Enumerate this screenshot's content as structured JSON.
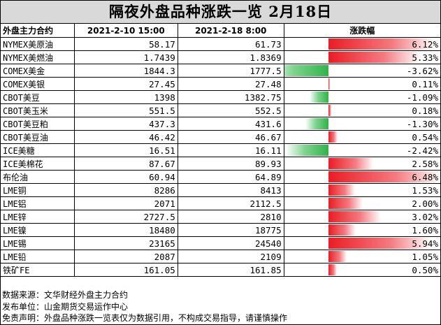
{
  "title": "隔夜外盘品种涨跌一览  2月18日",
  "columns": [
    "外盘主力合约",
    "2021-2-10 15:00",
    "2021-2-18 8:00",
    "涨跌幅"
  ],
  "colors": {
    "up": "#ea1c24",
    "down": "#31b34a",
    "title_bg": "#d9d9d9"
  },
  "rows": [
    {
      "name": "NYMEX美原油",
      "prev": "58.17",
      "curr": "61.73",
      "change": "6.12%",
      "pct": 6.12
    },
    {
      "name": "NYMEX美燃油",
      "prev": "1.7439",
      "curr": "1.8369",
      "change": "5.33%",
      "pct": 5.33
    },
    {
      "name": "COMEX美金",
      "prev": "1844.3",
      "curr": "1777.5",
      "change": "-3.62%",
      "pct": -3.62
    },
    {
      "name": "COMEX美银",
      "prev": "27.45",
      "curr": "27.48",
      "change": "0.11%",
      "pct": 0.11
    },
    {
      "name": "CBOT美豆",
      "prev": "1398",
      "curr": "1382.75",
      "change": "-1.09%",
      "pct": -1.09
    },
    {
      "name": "CBOT美玉米",
      "prev": "551.5",
      "curr": "552.5",
      "change": "0.18%",
      "pct": 0.18
    },
    {
      "name": "CBOT美豆粕",
      "prev": "437.3",
      "curr": "431.6",
      "change": "-1.30%",
      "pct": -1.3
    },
    {
      "name": "CBOT美豆油",
      "prev": "46.42",
      "curr": "46.67",
      "change": "0.54%",
      "pct": 0.54
    },
    {
      "name": "ICE美糖",
      "prev": "16.51",
      "curr": "16.11",
      "change": "-2.42%",
      "pct": -2.42
    },
    {
      "name": "ICE美棉花",
      "prev": "87.67",
      "curr": "89.93",
      "change": "2.58%",
      "pct": 2.58
    },
    {
      "name": "布伦油",
      "prev": "60.94",
      "curr": "64.89",
      "change": "6.48%",
      "pct": 6.48
    },
    {
      "name": "LME铜",
      "prev": "8286",
      "curr": "8413",
      "change": "1.53%",
      "pct": 1.53
    },
    {
      "name": "LME铝",
      "prev": "2071",
      "curr": "2112.5",
      "change": "2.00%",
      "pct": 2.0
    },
    {
      "name": "LME锌",
      "prev": "2727.5",
      "curr": "2810",
      "change": "3.02%",
      "pct": 3.02
    },
    {
      "name": "LME镍",
      "prev": "18480",
      "curr": "18775",
      "change": "1.60%",
      "pct": 1.6
    },
    {
      "name": "LME锡",
      "prev": "23165",
      "curr": "24540",
      "change": "5.94%",
      "pct": 5.94
    },
    {
      "name": "LME铅",
      "prev": "2087",
      "curr": "2109",
      "change": "1.05%",
      "pct": 1.05
    },
    {
      "name": "铁矿FE",
      "prev": "161.05",
      "curr": "161.85",
      "change": "0.50%",
      "pct": 0.5
    }
  ],
  "notes": [
    "数据来源：文华财经外盘主力合约",
    "发布单位：山金期货交易运作中心",
    "免责声明：外盘品种涨跌一览表仅为数据引用，不构成交易指导，请谨慎操作"
  ]
}
